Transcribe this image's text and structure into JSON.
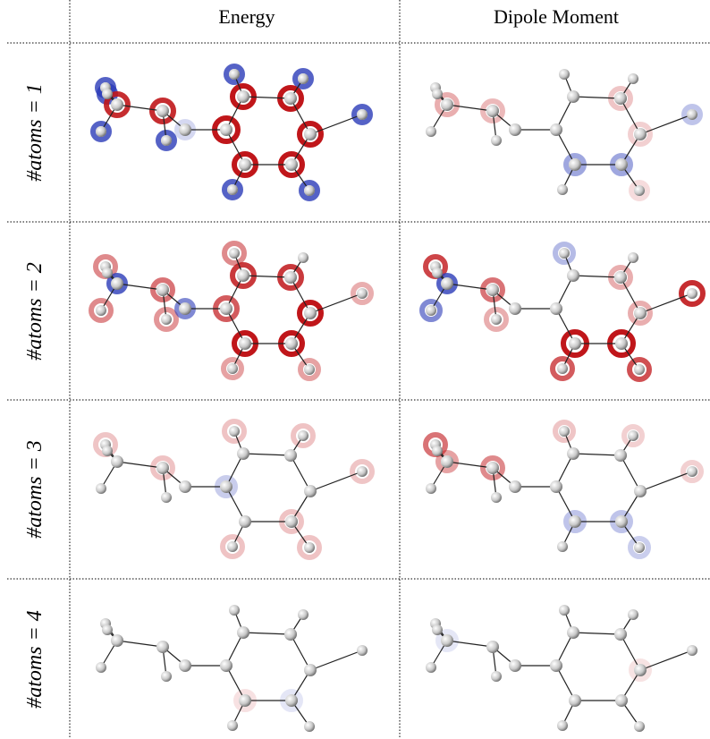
{
  "header": {
    "columns": [
      "Energy",
      "Dipole Moment"
    ]
  },
  "rows": [
    {
      "label": "#atoms = 1"
    },
    {
      "label": "#atoms = 2"
    },
    {
      "label": "#atoms = 3"
    },
    {
      "label": "#atoms = 4"
    }
  ]
}
